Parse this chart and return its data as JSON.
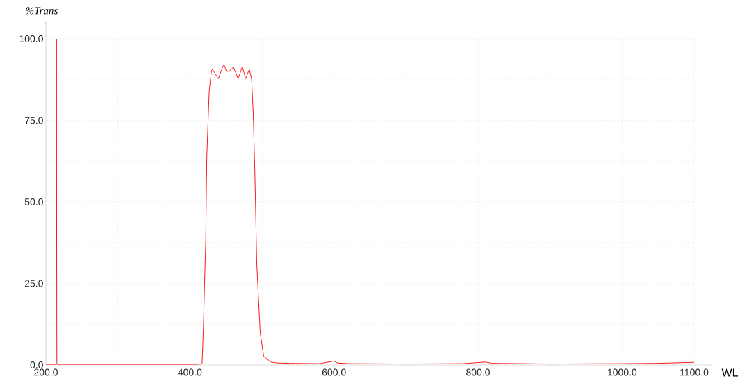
{
  "chart_data": {
    "type": "line",
    "xlabel": "WL",
    "ylabel": "%Trans",
    "x": [
      200,
      214,
      214.6,
      215.2,
      216,
      300,
      400,
      410,
      415,
      417,
      418.7,
      422,
      423.5,
      426.8,
      430,
      431.5,
      439.6,
      446,
      447.7,
      450.9,
      455,
      460.6,
      467,
      472.8,
      477.3,
      482.4,
      485.6,
      487.9,
      490.1,
      492.8,
      497.6,
      502.4,
      512,
      521.7,
      540,
      580,
      600,
      605,
      620,
      700,
      780,
      810,
      820,
      900,
      1000,
      1050,
      1100
    ],
    "series": [
      {
        "color": "#ff0000",
        "values": [
          0.2,
          0.2,
          100,
          0.2,
          0.2,
          0.2,
          0.2,
          0.2,
          0.3,
          0.6,
          11,
          38,
          64,
          84,
          90.3,
          90.6,
          87.8,
          91.7,
          91.9,
          89.9,
          90.2,
          91.3,
          87.8,
          91.5,
          87.8,
          90.6,
          87.8,
          77.2,
          59.4,
          31,
          9.8,
          2.7,
          0.9,
          0.6,
          0.5,
          0.4,
          1.2,
          0.6,
          0.4,
          0.3,
          0.4,
          0.9,
          0.5,
          0.3,
          0.4,
          0.5,
          0.8
        ]
      }
    ],
    "xlim": [
      200,
      1100
    ],
    "ylim": [
      0,
      100
    ],
    "xticks": [
      {
        "value": 200,
        "label": "200.0"
      },
      {
        "value": 300,
        "label": null
      },
      {
        "value": 400,
        "label": "400.0"
      },
      {
        "value": 500,
        "label": null
      },
      {
        "value": 600,
        "label": "600.0"
      },
      {
        "value": 700,
        "label": null
      },
      {
        "value": 800,
        "label": "800.0"
      },
      {
        "value": 900,
        "label": null
      },
      {
        "value": 1000,
        "label": "1000.0"
      },
      {
        "value": 1100,
        "label": "1100.0"
      }
    ],
    "yticks": [
      {
        "value": 0,
        "label": "0.0"
      },
      {
        "value": 12.5,
        "label": null
      },
      {
        "value": 25,
        "label": "25.0"
      },
      {
        "value": 37.5,
        "label": null
      },
      {
        "value": 50,
        "label": "50.0"
      },
      {
        "value": 62.5,
        "label": null
      },
      {
        "value": 75,
        "label": "75.0"
      },
      {
        "value": 87.5,
        "label": null
      },
      {
        "value": 100,
        "label": "100.0"
      }
    ],
    "grid": true,
    "marker": "none",
    "line_style": "solid"
  }
}
